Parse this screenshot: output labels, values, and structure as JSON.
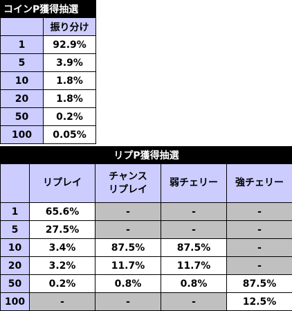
{
  "coin_table": {
    "title": "コインP獲得抽選",
    "col_header": "振り分け",
    "rows": [
      {
        "point": "1",
        "value": "92.9%"
      },
      {
        "point": "5",
        "value": "3.9%"
      },
      {
        "point": "10",
        "value": "1.8%"
      },
      {
        "point": "20",
        "value": "1.8%"
      },
      {
        "point": "50",
        "value": "0.2%"
      },
      {
        "point": "100",
        "value": "0.05%"
      }
    ]
  },
  "replay_table": {
    "title": "リプP獲得抽選",
    "headers": [
      "リプレイ",
      "チャンス\nリプレイ",
      "弱チェリー",
      "強チェリー"
    ],
    "header_line1": [
      "リプレイ",
      "チャンス",
      "弱チェリー",
      "強チェリー"
    ],
    "header_line2": [
      "",
      "リプレイ",
      "",
      ""
    ],
    "rows": [
      {
        "point": "1",
        "cells": [
          "65.6%",
          "-",
          "-",
          "-"
        ]
      },
      {
        "point": "5",
        "cells": [
          "27.5%",
          "-",
          "-",
          "-"
        ]
      },
      {
        "point": "10",
        "cells": [
          "3.4%",
          "87.5%",
          "87.5%",
          "-"
        ]
      },
      {
        "point": "20",
        "cells": [
          "3.2%",
          "11.7%",
          "11.7%",
          "-"
        ]
      },
      {
        "point": "50",
        "cells": [
          "0.2%",
          "0.8%",
          "0.8%",
          "87.5%"
        ]
      },
      {
        "point": "100",
        "cells": [
          "-",
          "-",
          "-",
          "12.5%"
        ]
      }
    ],
    "gray_cells": [
      [
        false,
        true,
        true,
        true
      ],
      [
        false,
        true,
        true,
        true
      ],
      [
        false,
        false,
        false,
        true
      ],
      [
        false,
        false,
        false,
        true
      ],
      [
        false,
        false,
        false,
        false
      ],
      [
        true,
        true,
        true,
        false
      ]
    ]
  },
  "colors": {
    "header_bg": "#ccccff",
    "title_bg": "#000000",
    "empty_cell_bg": "#c0c0c0"
  }
}
